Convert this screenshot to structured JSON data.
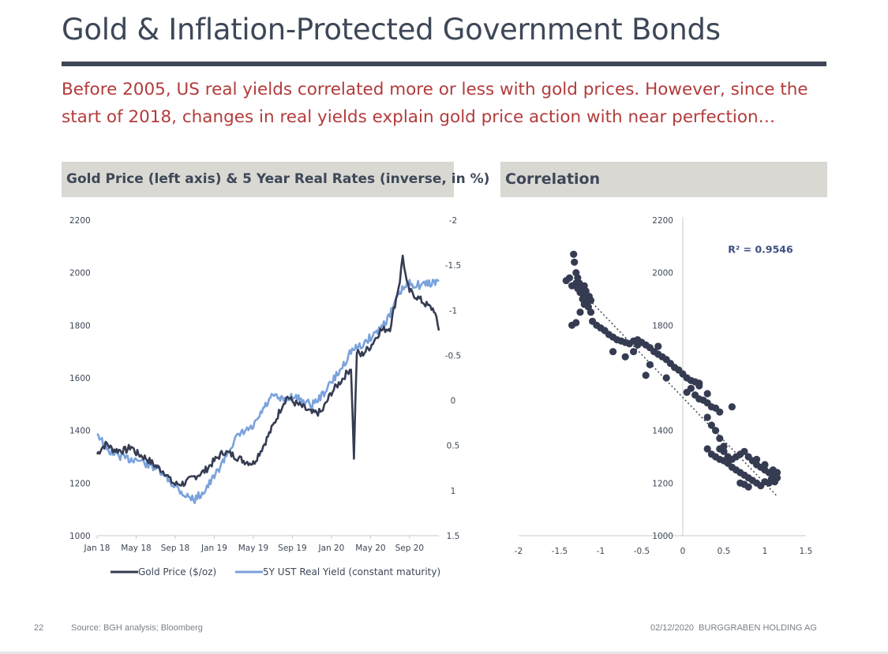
{
  "slide": {
    "title": "Gold & Inflation-Protected Government Bonds",
    "subtitle": "Before 2005, US real yields correlated more or less with gold prices. However, since the start of 2018, changes in real yields explain gold price action with near perfection…",
    "left_panel_title": "Gold Price (left axis) & 5 Year Real Rates (inverse, in %)",
    "right_panel_title": "Correlation",
    "page_number": "22",
    "source": "Source: BGH analysis; Bloomberg",
    "date_company": "02/12/2020  BURGGRABEN HOLDING AG"
  },
  "colors": {
    "title": "#3d4757",
    "subtitle": "#b33b3b",
    "header_bg": "#d9d8d3",
    "gold_series": "#353c52",
    "yield_series": "#7aa2dc",
    "scatter": "#353c52"
  },
  "chart_data": [
    {
      "type": "line",
      "title": "Gold Price (left axis) & 5 Year Real Rates (inverse, in %)",
      "x_tick_labels": [
        "Jan 18",
        "May 18",
        "Sep 18",
        "Jan 19",
        "May 19",
        "Sep 19",
        "Jan 20",
        "May 20",
        "Sep 20"
      ],
      "x_range_months": [
        0,
        35
      ],
      "y_left": {
        "ticks": [
          "2200",
          "2000",
          "1800",
          "1600",
          "1400",
          "1200",
          "1000"
        ],
        "ylim": [
          1000,
          2200
        ]
      },
      "y_right": {
        "ticks": [
          "-2",
          "-1.5",
          "-1",
          "-0.5",
          "0",
          "0.5",
          "1",
          "1.5"
        ],
        "ylim": [
          -2,
          1.5
        ],
        "inverted": true
      },
      "series": [
        {
          "name": "Gold Price ($/oz)",
          "axis": "left",
          "points": [
            [
              0,
              1310
            ],
            [
              0.5,
              1335
            ],
            [
              1,
              1350
            ],
            [
              1.5,
              1330
            ],
            [
              2,
              1325
            ],
            [
              3,
              1325
            ],
            [
              3.5,
              1340
            ],
            [
              4,
              1315
            ],
            [
              5,
              1295
            ],
            [
              6,
              1265
            ],
            [
              7,
              1240
            ],
            [
              7.5,
              1210
            ],
            [
              8,
              1195
            ],
            [
              9,
              1200
            ],
            [
              10,
              1225
            ],
            [
              11,
              1245
            ],
            [
              12,
              1285
            ],
            [
              13,
              1320
            ],
            [
              14,
              1305
            ],
            [
              15,
              1285
            ],
            [
              16,
              1275
            ],
            [
              17,
              1340
            ],
            [
              18,
              1415
            ],
            [
              19,
              1500
            ],
            [
              19.5,
              1530
            ],
            [
              20,
              1510
            ],
            [
              21,
              1490
            ],
            [
              22,
              1465
            ],
            [
              23,
              1470
            ],
            [
              24,
              1545
            ],
            [
              25,
              1590
            ],
            [
              26,
              1640
            ],
            [
              26.3,
              1300
            ],
            [
              26.6,
              1700
            ],
            [
              27,
              1685
            ],
            [
              28,
              1720
            ],
            [
              29,
              1780
            ],
            [
              30,
              1790
            ],
            [
              31,
              1970
            ],
            [
              31.3,
              2065
            ],
            [
              31.7,
              1960
            ],
            [
              32,
              1930
            ],
            [
              33,
              1900
            ],
            [
              34,
              1870
            ],
            [
              34.5,
              1860
            ],
            [
              35,
              1780
            ]
          ]
        },
        {
          "name": "5Y UST Real Yield (constant maturity)",
          "axis": "right",
          "points": [
            [
              0,
              0.35
            ],
            [
              0.5,
              0.45
            ],
            [
              1,
              0.55
            ],
            [
              2,
              0.6
            ],
            [
              3,
              0.65
            ],
            [
              4,
              0.65
            ],
            [
              5,
              0.7
            ],
            [
              6,
              0.75
            ],
            [
              7,
              0.85
            ],
            [
              8,
              0.95
            ],
            [
              9,
              1.05
            ],
            [
              10,
              1.1
            ],
            [
              11,
              1.0
            ],
            [
              12,
              0.85
            ],
            [
              13,
              0.65
            ],
            [
              14,
              0.45
            ],
            [
              15,
              0.35
            ],
            [
              16,
              0.3
            ],
            [
              17,
              0.1
            ],
            [
              18,
              -0.05
            ],
            [
              19,
              0.0
            ],
            [
              20,
              -0.05
            ],
            [
              21,
              0.0
            ],
            [
              22,
              0.05
            ],
            [
              23,
              -0.05
            ],
            [
              24,
              -0.2
            ],
            [
              25,
              -0.35
            ],
            [
              26,
              -0.55
            ],
            [
              27,
              -0.6
            ],
            [
              28,
              -0.7
            ],
            [
              29,
              -0.8
            ],
            [
              30,
              -0.95
            ],
            [
              31,
              -1.2
            ],
            [
              32,
              -1.3
            ],
            [
              33,
              -1.28
            ],
            [
              34,
              -1.3
            ],
            [
              35,
              -1.32
            ]
          ]
        }
      ],
      "legend": [
        "Gold Price ($/oz)",
        "5Y UST Real Yield (constant maturity)"
      ],
      "legend_position": "bottom"
    },
    {
      "type": "scatter",
      "title": "Correlation",
      "x_ticks": [
        "-2",
        "-1.5",
        "-1",
        "-0.5",
        "0",
        "0.5",
        "1",
        "1.5"
      ],
      "xlim": [
        -2,
        1.5
      ],
      "y_ticks": [
        "2200",
        "2000",
        "1800",
        "1400",
        "1200",
        "1000"
      ],
      "ylim": [
        1000,
        2200
      ],
      "annotation": "R² = 0.9546",
      "trendline": {
        "style": "dotted",
        "from": [
          -1.3,
          1950
        ],
        "to": [
          1.15,
          1150
        ]
      },
      "points": [
        [
          -1.33,
          2070
        ],
        [
          -1.32,
          2040
        ],
        [
          -1.3,
          2000
        ],
        [
          -1.28,
          1980
        ],
        [
          -1.26,
          1960
        ],
        [
          -1.24,
          1940
        ],
        [
          -1.22,
          1920
        ],
        [
          -1.2,
          1950
        ],
        [
          -1.18,
          1930
        ],
        [
          -1.16,
          1905
        ],
        [
          -1.14,
          1910
        ],
        [
          -1.12,
          1895
        ],
        [
          -1.3,
          1960
        ],
        [
          -1.28,
          1940
        ],
        [
          -1.25,
          1925
        ],
        [
          -1.22,
          1900
        ],
        [
          -1.18,
          1880
        ],
        [
          -1.15,
          1870
        ],
        [
          -1.12,
          1850
        ],
        [
          -1.2,
          1880
        ],
        [
          -1.25,
          1850
        ],
        [
          -1.3,
          1810
        ],
        [
          -1.35,
          1800
        ],
        [
          -1.42,
          1970
        ],
        [
          -1.38,
          1980
        ],
        [
          -1.35,
          1950
        ],
        [
          -1.1,
          1815
        ],
        [
          -1.05,
          1800
        ],
        [
          -1.0,
          1790
        ],
        [
          -0.95,
          1780
        ],
        [
          -0.9,
          1765
        ],
        [
          -0.85,
          1755
        ],
        [
          -0.8,
          1745
        ],
        [
          -0.75,
          1740
        ],
        [
          -0.7,
          1735
        ],
        [
          -0.65,
          1730
        ],
        [
          -0.6,
          1740
        ],
        [
          -0.55,
          1745
        ],
        [
          -0.5,
          1735
        ],
        [
          -0.45,
          1725
        ],
        [
          -0.4,
          1715
        ],
        [
          -0.35,
          1700
        ],
        [
          -0.3,
          1690
        ],
        [
          -0.25,
          1680
        ],
        [
          -0.2,
          1670
        ],
        [
          -0.15,
          1655
        ],
        [
          -0.1,
          1640
        ],
        [
          -0.05,
          1630
        ],
        [
          0.0,
          1615
        ],
        [
          -0.6,
          1700
        ],
        [
          -0.4,
          1650
        ],
        [
          -0.45,
          1610
        ],
        [
          -0.2,
          1600
        ],
        [
          0.05,
          1600
        ],
        [
          0.1,
          1590
        ],
        [
          0.15,
          1585
        ],
        [
          0.2,
          1570
        ],
        [
          0.1,
          1560
        ],
        [
          0.05,
          1545
        ],
        [
          0.15,
          1535
        ],
        [
          0.2,
          1520
        ],
        [
          0.25,
          1515
        ],
        [
          0.3,
          1505
        ],
        [
          0.35,
          1490
        ],
        [
          0.4,
          1485
        ],
        [
          0.45,
          1470
        ],
        [
          0.6,
          1490
        ],
        [
          0.3,
          1540
        ],
        [
          0.3,
          1450
        ],
        [
          0.35,
          1420
        ],
        [
          0.4,
          1400
        ],
        [
          0.45,
          1370
        ],
        [
          0.5,
          1340
        ],
        [
          0.3,
          1330
        ],
        [
          0.35,
          1310
        ],
        [
          0.4,
          1300
        ],
        [
          0.45,
          1290
        ],
        [
          0.5,
          1285
        ],
        [
          0.55,
          1275
        ],
        [
          0.6,
          1290
        ],
        [
          0.65,
          1300
        ],
        [
          0.7,
          1310
        ],
        [
          0.75,
          1320
        ],
        [
          0.8,
          1300
        ],
        [
          0.85,
          1285
        ],
        [
          0.9,
          1270
        ],
        [
          0.95,
          1260
        ],
        [
          1.0,
          1250
        ],
        [
          1.05,
          1240
        ],
        [
          1.1,
          1230
        ],
        [
          1.15,
          1220
        ],
        [
          1.05,
          1200
        ],
        [
          1.0,
          1205
        ],
        [
          0.95,
          1190
        ],
        [
          0.9,
          1200
        ],
        [
          0.85,
          1210
        ],
        [
          0.8,
          1220
        ],
        [
          0.75,
          1230
        ],
        [
          0.7,
          1240
        ],
        [
          0.65,
          1250
        ],
        [
          0.6,
          1260
        ],
        [
          0.55,
          1300
        ],
        [
          0.5,
          1320
        ],
        [
          0.45,
          1330
        ],
        [
          0.8,
          1185
        ],
        [
          0.75,
          1195
        ],
        [
          0.7,
          1200
        ],
        [
          0.9,
          1290
        ],
        [
          1.0,
          1270
        ],
        [
          1.1,
          1250
        ],
        [
          1.15,
          1240
        ],
        [
          1.12,
          1205
        ],
        [
          1.08,
          1215
        ],
        [
          0.2,
          1580
        ],
        [
          -0.85,
          1700
        ],
        [
          -0.7,
          1680
        ],
        [
          -0.55,
          1725
        ],
        [
          -0.3,
          1720
        ]
      ]
    }
  ]
}
